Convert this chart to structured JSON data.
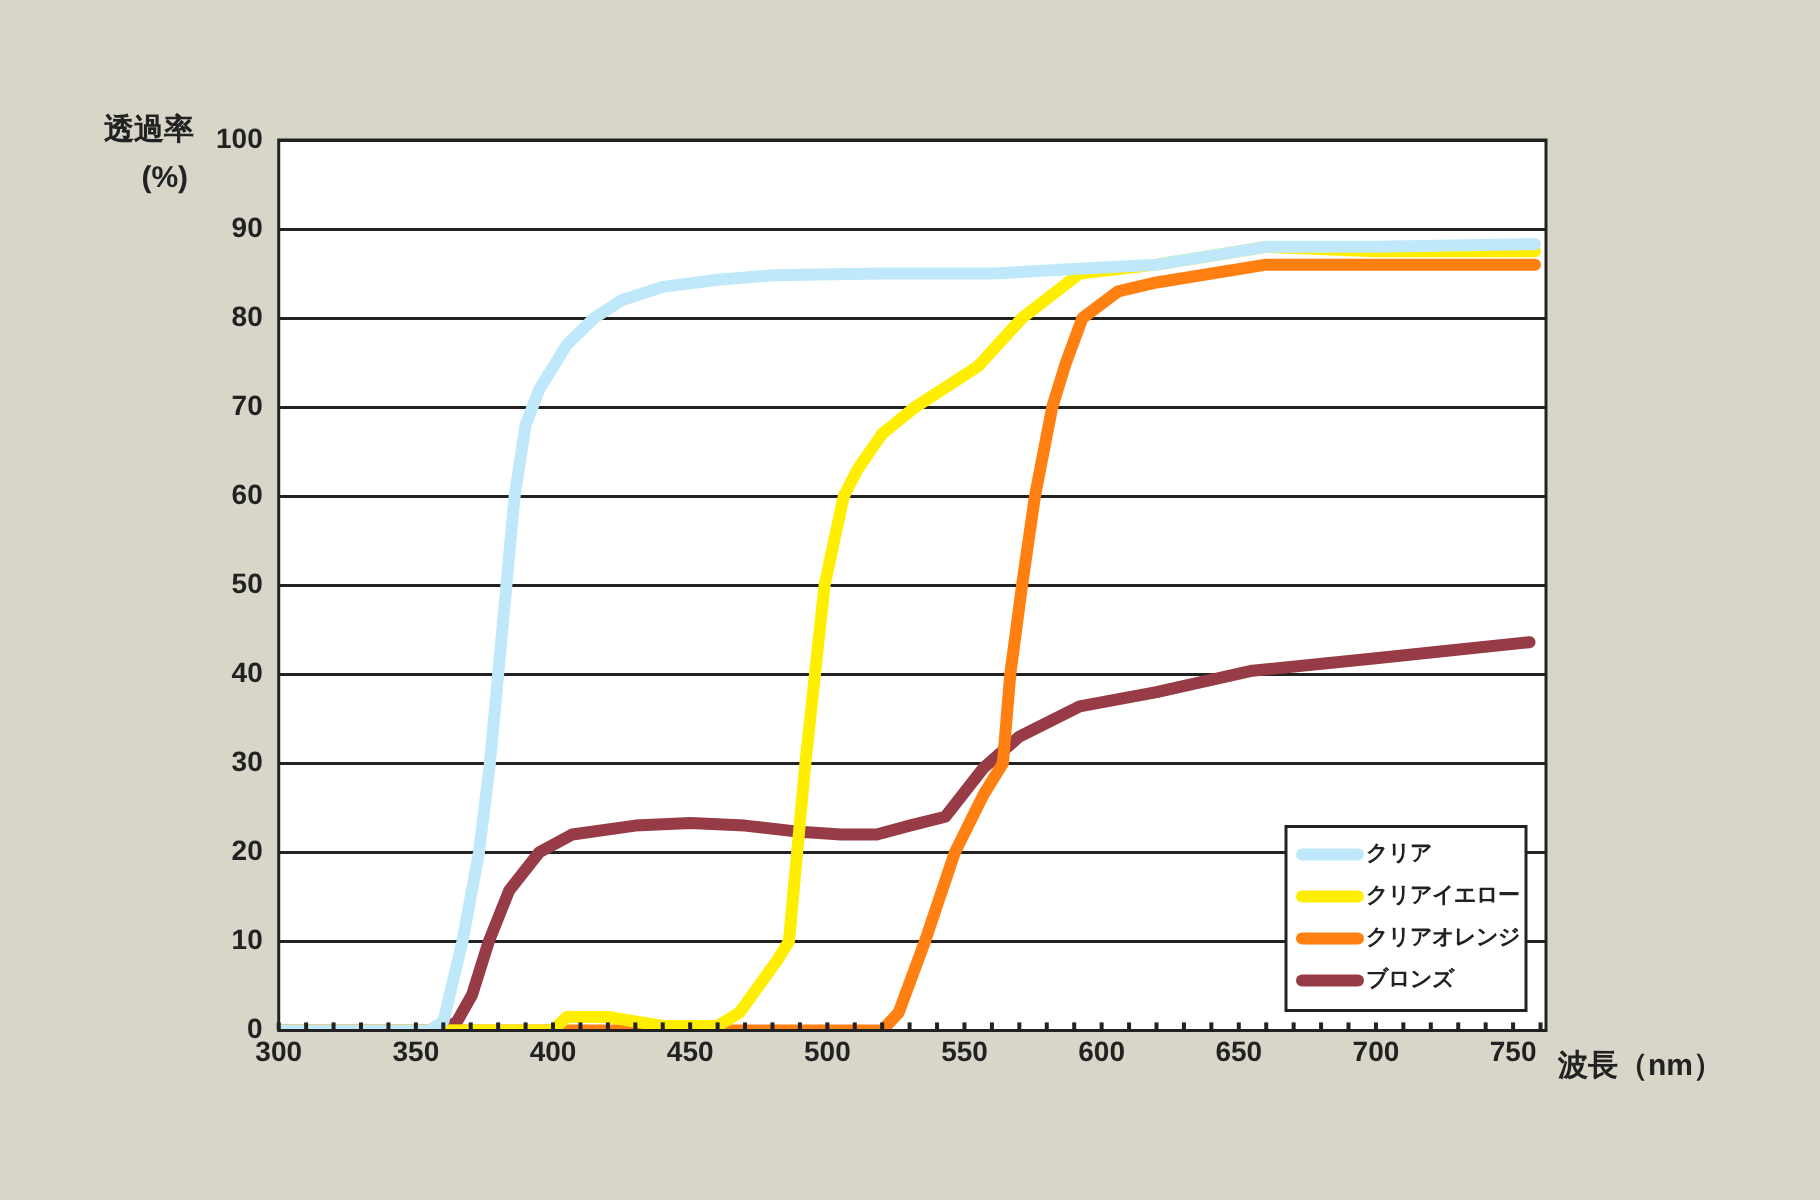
{
  "chart_data": {
    "type": "line",
    "xlabel": "波長（nm）",
    "ylabel": "透過率\n(%)",
    "xlim": [
      300,
      762
    ],
    "xticks": [
      300,
      350,
      400,
      450,
      500,
      550,
      600,
      650,
      700,
      750
    ],
    "ylim": [
      0,
      100
    ],
    "yticks": [
      0,
      10,
      20,
      30,
      40,
      50,
      60,
      70,
      80,
      90,
      100
    ],
    "grid": "y",
    "legend": "bottom right",
    "marker": "none",
    "line_style": "solid",
    "series": [
      {
        "name": "クリア",
        "color": "#bfe9fb",
        "x": [
          300,
          355,
          360,
          367,
          373,
          377,
          380,
          383,
          386,
          390,
          395,
          405,
          415,
          425,
          440,
          460,
          480,
          520,
          560,
          590,
          620,
          660,
          700,
          758
        ],
        "values": [
          0,
          0,
          1,
          10,
          20,
          30,
          40,
          50,
          60,
          68,
          72,
          77,
          80,
          82,
          83.5,
          84.3,
          84.8,
          85,
          85,
          85.5,
          86,
          88,
          88,
          88.3
        ]
      },
      {
        "name": "クリアイエロー",
        "color": "#ffee00",
        "x": [
          300,
          400,
          405,
          420,
          440,
          460,
          468,
          475,
          482,
          486,
          489,
          492,
          495.5,
          499,
          506,
          511,
          520,
          532,
          555,
          571,
          592,
          620,
          660,
          700,
          758
        ],
        "values": [
          0,
          0,
          1.5,
          1.5,
          0.5,
          0.5,
          2,
          5,
          8,
          10,
          20,
          30,
          40,
          50,
          60,
          63,
          67,
          70,
          74.6,
          80,
          85,
          86,
          88,
          87.5,
          87.5
        ]
      },
      {
        "name": "クリアオレンジ",
        "color": "#ff7f10",
        "x": [
          300,
          520,
          526,
          535.6,
          546.5,
          557,
          564,
          566.7,
          571,
          575.7,
          582,
          587,
          593,
          606,
          620,
          660,
          700,
          758
        ],
        "values": [
          0,
          0,
          2,
          10,
          20,
          26.5,
          30,
          40,
          50,
          60,
          70,
          75,
          80,
          83,
          84,
          86,
          86,
          86
        ]
      },
      {
        "name": "ブロンズ",
        "color": "#973c47",
        "x": [
          300,
          360,
          365,
          370.5,
          376.6,
          384,
          395,
          407,
          430,
          450,
          470,
          490,
          505,
          518,
          530,
          543,
          557,
          570,
          592,
          620,
          655,
          700,
          756
        ],
        "values": [
          0,
          0,
          1,
          4,
          10,
          15.7,
          20,
          22,
          23,
          23.3,
          23,
          22.3,
          22,
          22,
          23,
          24,
          29.5,
          33,
          36.4,
          38,
          40.4,
          41.8,
          43.6
        ]
      }
    ]
  }
}
